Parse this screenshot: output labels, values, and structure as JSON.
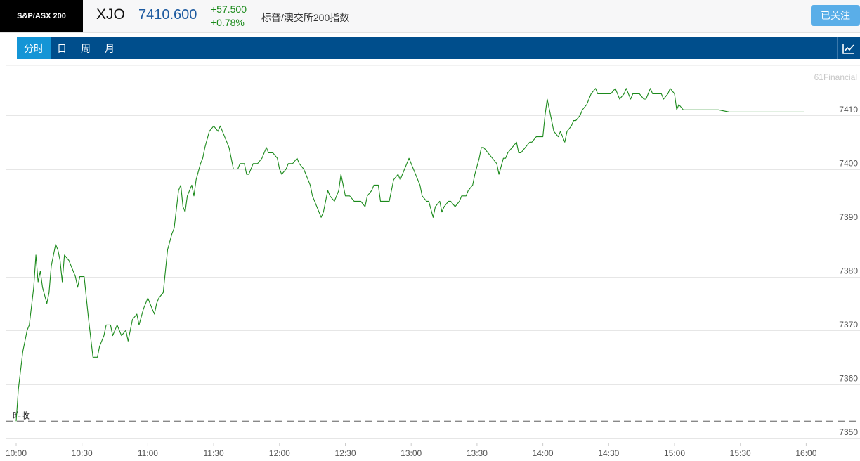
{
  "header": {
    "index_logo": "S&P/ASX 200",
    "symbol": "XJO",
    "price": "7410.600",
    "change_abs": "+57.500",
    "change_pct": "+0.78%",
    "name": "标普/澳交所200指数",
    "follow_label": "已关注"
  },
  "tabs": [
    {
      "label": "分时",
      "active": true
    },
    {
      "label": "日",
      "active": false
    },
    {
      "label": "周",
      "active": false
    },
    {
      "label": "月",
      "active": false
    }
  ],
  "watermark": "61Financial",
  "colors": {
    "line": "#1c8a1c",
    "prev_close_line": "#888888",
    "grid": "#e6e6e6",
    "tab_bar": "#004e8c",
    "tab_active": "#1495d6"
  },
  "chart_data": {
    "type": "line",
    "title": "",
    "xlabel": "",
    "ylabel": "",
    "ylim": [
      7350,
      7415
    ],
    "yticks": [
      7350,
      7360,
      7370,
      7380,
      7390,
      7400,
      7410
    ],
    "xticks": [
      "10:00",
      "10:30",
      "11:00",
      "11:30",
      "12:00",
      "12:30",
      "13:00",
      "13:30",
      "14:00",
      "14:30",
      "15:00",
      "15:30",
      "16:00"
    ],
    "prev_close_label": "昨收",
    "prev_close": 7353.1,
    "grid": true,
    "series": [
      {
        "name": "",
        "points": [
          [
            "10:00",
            7353.1
          ],
          [
            "10:01",
            7359
          ],
          [
            "10:03",
            7366
          ],
          [
            "10:05",
            7370
          ],
          [
            "10:06",
            7371
          ],
          [
            "10:08",
            7378
          ],
          [
            "10:09",
            7384
          ],
          [
            "10:10",
            7379
          ],
          [
            "10:11",
            7381
          ],
          [
            "10:12",
            7378
          ],
          [
            "10:14",
            7375
          ],
          [
            "10:15",
            7377
          ],
          [
            "10:16",
            7382
          ],
          [
            "10:18",
            7386
          ],
          [
            "10:19",
            7385
          ],
          [
            "10:20",
            7383
          ],
          [
            "10:21",
            7379
          ],
          [
            "10:22",
            7384
          ],
          [
            "10:24",
            7383
          ],
          [
            "10:25",
            7382
          ],
          [
            "10:27",
            7380
          ],
          [
            "10:28",
            7378
          ],
          [
            "10:29",
            7380
          ],
          [
            "10:31",
            7380
          ],
          [
            "10:32",
            7376
          ],
          [
            "10:33",
            7372
          ],
          [
            "10:35",
            7365
          ],
          [
            "10:37",
            7365
          ],
          [
            "10:38",
            7367
          ],
          [
            "10:40",
            7369
          ],
          [
            "10:41",
            7371
          ],
          [
            "10:43",
            7371
          ],
          [
            "10:44",
            7369
          ],
          [
            "10:46",
            7371
          ],
          [
            "10:48",
            7369
          ],
          [
            "10:50",
            7370
          ],
          [
            "10:51",
            7368
          ],
          [
            "10:53",
            7372
          ],
          [
            "10:55",
            7373
          ],
          [
            "10:56",
            7371
          ],
          [
            "10:58",
            7374
          ],
          [
            "11:00",
            7376
          ],
          [
            "11:01",
            7375
          ],
          [
            "11:02",
            7374
          ],
          [
            "11:03",
            7373
          ],
          [
            "11:04",
            7375
          ],
          [
            "11:05",
            7376
          ],
          [
            "11:07",
            7377
          ],
          [
            "11:08",
            7381
          ],
          [
            "11:09",
            7385
          ],
          [
            "11:11",
            7388
          ],
          [
            "11:12",
            7389
          ],
          [
            "11:14",
            7396
          ],
          [
            "11:15",
            7397
          ],
          [
            "11:16",
            7393
          ],
          [
            "11:17",
            7392
          ],
          [
            "11:18",
            7395
          ],
          [
            "11:20",
            7397
          ],
          [
            "11:21",
            7395
          ],
          [
            "11:22",
            7398
          ],
          [
            "11:24",
            7401
          ],
          [
            "11:25",
            7402
          ],
          [
            "11:26",
            7404
          ],
          [
            "11:28",
            7407
          ],
          [
            "11:30",
            7408
          ],
          [
            "11:32",
            7407
          ],
          [
            "11:33",
            7408
          ],
          [
            "11:35",
            7406
          ],
          [
            "11:37",
            7404
          ],
          [
            "11:38",
            7402
          ],
          [
            "11:39",
            7400
          ],
          [
            "11:41",
            7400
          ],
          [
            "11:42",
            7401
          ],
          [
            "11:44",
            7401
          ],
          [
            "11:45",
            7399
          ],
          [
            "11:46",
            7399
          ],
          [
            "11:48",
            7401
          ],
          [
            "11:50",
            7401
          ],
          [
            "11:52",
            7402
          ],
          [
            "11:54",
            7404
          ],
          [
            "11:55",
            7403
          ],
          [
            "11:57",
            7403
          ],
          [
            "11:59",
            7402
          ],
          [
            "12:00",
            7400
          ],
          [
            "12:01",
            7399
          ],
          [
            "12:03",
            7400
          ],
          [
            "12:04",
            7401
          ],
          [
            "12:06",
            7401
          ],
          [
            "12:08",
            7402
          ],
          [
            "12:09",
            7401
          ],
          [
            "12:11",
            7400
          ],
          [
            "12:12",
            7399
          ],
          [
            "12:14",
            7397
          ],
          [
            "12:15",
            7395
          ],
          [
            "12:17",
            7393
          ],
          [
            "12:19",
            7391
          ],
          [
            "12:20",
            7392
          ],
          [
            "12:22",
            7396
          ],
          [
            "12:23",
            7395
          ],
          [
            "12:25",
            7394
          ],
          [
            "12:27",
            7396
          ],
          [
            "12:28",
            7399
          ],
          [
            "12:29",
            7397
          ],
          [
            "12:30",
            7395
          ],
          [
            "12:32",
            7395
          ],
          [
            "12:34",
            7394
          ],
          [
            "12:35",
            7394
          ],
          [
            "12:37",
            7394
          ],
          [
            "12:39",
            7393
          ],
          [
            "12:40",
            7395
          ],
          [
            "12:42",
            7396
          ],
          [
            "12:43",
            7397
          ],
          [
            "12:45",
            7397
          ],
          [
            "12:46",
            7394
          ],
          [
            "12:47",
            7394
          ],
          [
            "12:49",
            7394
          ],
          [
            "12:50",
            7394
          ],
          [
            "12:52",
            7398
          ],
          [
            "12:54",
            7399
          ],
          [
            "12:55",
            7398
          ],
          [
            "12:57",
            7400
          ],
          [
            "12:59",
            7402
          ],
          [
            "13:00",
            7401
          ],
          [
            "13:02",
            7399
          ],
          [
            "13:04",
            7397
          ],
          [
            "13:05",
            7395
          ],
          [
            "13:07",
            7394
          ],
          [
            "13:08",
            7394
          ],
          [
            "13:10",
            7391
          ],
          [
            "13:11",
            7393
          ],
          [
            "13:13",
            7394
          ],
          [
            "13:14",
            7392
          ],
          [
            "13:15",
            7393
          ],
          [
            "13:17",
            7394
          ],
          [
            "13:18",
            7394
          ],
          [
            "13:20",
            7393
          ],
          [
            "13:22",
            7394
          ],
          [
            "13:23",
            7395
          ],
          [
            "13:25",
            7395
          ],
          [
            "13:26",
            7396
          ],
          [
            "13:28",
            7397
          ],
          [
            "13:29",
            7399
          ],
          [
            "13:31",
            7402
          ],
          [
            "13:32",
            7404
          ],
          [
            "13:33",
            7404
          ],
          [
            "13:35",
            7403
          ],
          [
            "13:37",
            7402
          ],
          [
            "13:39",
            7401
          ],
          [
            "13:40",
            7399
          ],
          [
            "13:42",
            7402
          ],
          [
            "13:43",
            7402
          ],
          [
            "13:44",
            7403
          ],
          [
            "13:46",
            7404
          ],
          [
            "13:48",
            7405
          ],
          [
            "13:49",
            7403
          ],
          [
            "13:50",
            7403
          ],
          [
            "13:52",
            7404
          ],
          [
            "13:54",
            7405
          ],
          [
            "13:55",
            7405
          ],
          [
            "13:57",
            7406
          ],
          [
            "13:58",
            7406
          ],
          [
            "14:00",
            7406
          ],
          [
            "14:01",
            7410
          ],
          [
            "14:02",
            7413
          ],
          [
            "14:03",
            7411
          ],
          [
            "14:05",
            7407
          ],
          [
            "14:07",
            7406
          ],
          [
            "14:08",
            7407
          ],
          [
            "14:10",
            7405
          ],
          [
            "14:11",
            7407
          ],
          [
            "14:13",
            7408
          ],
          [
            "14:14",
            7409
          ],
          [
            "14:15",
            7409
          ],
          [
            "14:17",
            7410
          ],
          [
            "14:18",
            7411
          ],
          [
            "14:20",
            7412
          ],
          [
            "14:21",
            7413
          ],
          [
            "14:22",
            7414
          ],
          [
            "14:24",
            7415
          ],
          [
            "14:25",
            7414
          ],
          [
            "14:27",
            7414
          ],
          [
            "14:28",
            7414
          ],
          [
            "14:30",
            7414
          ],
          [
            "14:31",
            7414
          ],
          [
            "14:33",
            7415
          ],
          [
            "14:34",
            7414
          ],
          [
            "14:35",
            7413
          ],
          [
            "14:37",
            7414
          ],
          [
            "14:38",
            7415
          ],
          [
            "14:40",
            7413
          ],
          [
            "14:41",
            7414
          ],
          [
            "14:43",
            7414
          ],
          [
            "14:44",
            7414
          ],
          [
            "14:46",
            7413
          ],
          [
            "14:47",
            7413
          ],
          [
            "14:49",
            7415
          ],
          [
            "14:50",
            7414
          ],
          [
            "14:52",
            7414
          ],
          [
            "14:54",
            7414
          ],
          [
            "14:55",
            7413
          ],
          [
            "14:57",
            7414
          ],
          [
            "14:58",
            7415
          ],
          [
            "15:00",
            7414
          ],
          [
            "15:01",
            7411
          ],
          [
            "15:02",
            7412
          ],
          [
            "15:04",
            7411
          ],
          [
            "15:06",
            7411
          ],
          [
            "15:08",
            7411
          ],
          [
            "15:10",
            7411
          ],
          [
            "15:12",
            7411
          ],
          [
            "15:14",
            7411
          ],
          [
            "15:20",
            7411
          ],
          [
            "15:25",
            7410.6
          ],
          [
            "15:59",
            7410.6
          ]
        ]
      }
    ]
  }
}
